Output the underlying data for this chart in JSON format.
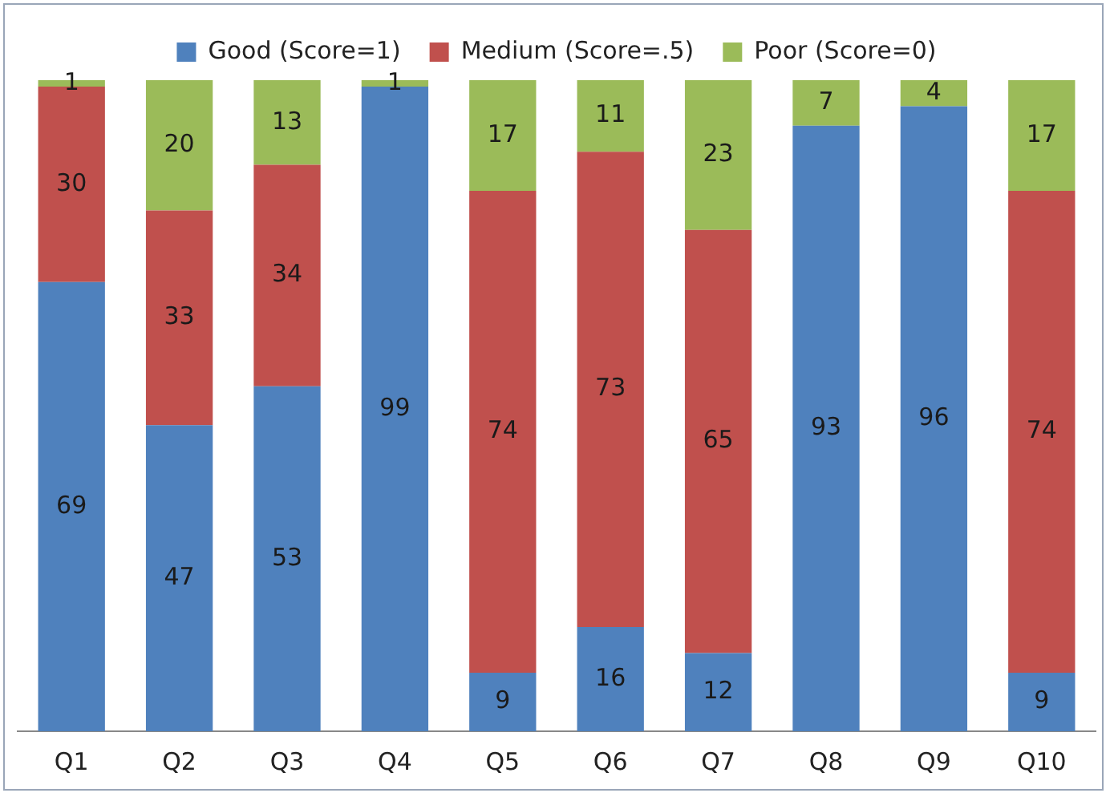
{
  "chart_data": {
    "type": "bar",
    "stacked": true,
    "categories": [
      "Q1",
      "Q2",
      "Q3",
      "Q4",
      "Q5",
      "Q6",
      "Q7",
      "Q8",
      "Q9",
      "Q10"
    ],
    "series": [
      {
        "name": "Good (Score=1)",
        "color": "#4f81bd",
        "values": [
          69,
          47,
          53,
          99,
          9,
          16,
          12,
          93,
          96,
          9
        ]
      },
      {
        "name": "Medium (Score=.5)",
        "color": "#c0504d",
        "values": [
          30,
          33,
          34,
          null,
          74,
          73,
          65,
          null,
          null,
          74
        ]
      },
      {
        "name": "Poor (Score=0)",
        "color": "#9bbb59",
        "values": [
          1,
          20,
          13,
          1,
          17,
          11,
          23,
          7,
          4,
          17
        ]
      }
    ],
    "ylim": [
      0,
      100
    ],
    "tick_labels": "x",
    "data_labels": true,
    "legend": "top",
    "grid": false
  }
}
